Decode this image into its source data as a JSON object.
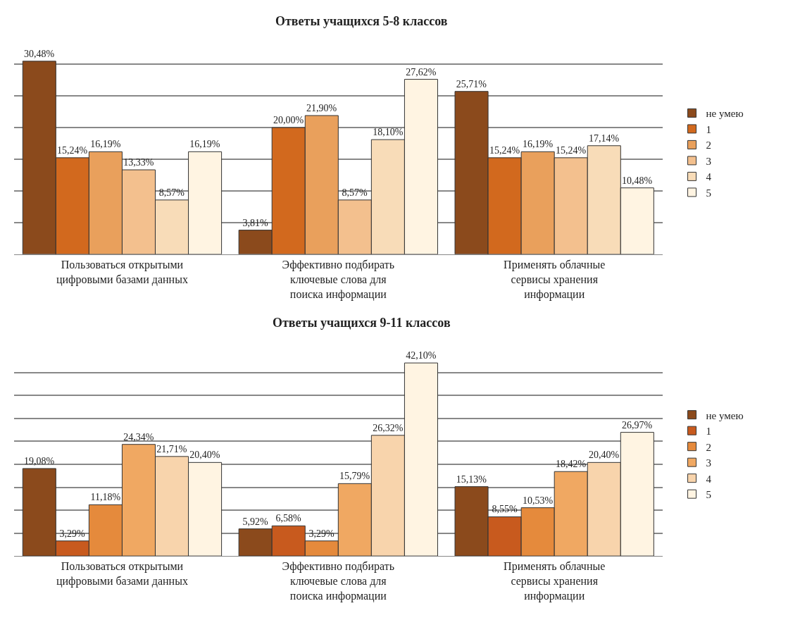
{
  "chart_data": [
    {
      "type": "bar",
      "title": "Ответы учащихся 5-8 классов",
      "categories": [
        "Пользоваться открытыми цифровыми базами данных",
        "Эффективно подбирать ключевые слова для поиска информации",
        "Применять облачные сервисы хранения информации"
      ],
      "series": [
        {
          "name": "не умею",
          "color": "#8b4a1c",
          "values": [
            30.48,
            3.81,
            25.71
          ],
          "value_labels": [
            "30,48%",
            "3,81%",
            "25,71%"
          ]
        },
        {
          "name": "1",
          "color": "#d2691e",
          "values": [
            15.24,
            20.0,
            15.24
          ],
          "value_labels": [
            "15,24%",
            "20,00%",
            "15,24%"
          ]
        },
        {
          "name": "2",
          "color": "#e9a05c",
          "values": [
            16.19,
            21.9,
            16.19
          ],
          "value_labels": [
            "16,19%",
            "21,90%",
            "16,19%"
          ]
        },
        {
          "name": "3",
          "color": "#f3c08e",
          "values": [
            13.33,
            8.57,
            15.24
          ],
          "value_labels": [
            "13,33%",
            "8,57%",
            "15,24%"
          ]
        },
        {
          "name": "4",
          "color": "#f8dcb8",
          "values": [
            8.57,
            18.1,
            17.14
          ],
          "value_labels": [
            "8,57%",
            "18,10%",
            "17,14%"
          ]
        },
        {
          "name": "5",
          "color": "#fff4e2",
          "values": [
            16.19,
            27.62,
            10.48
          ],
          "value_labels": [
            "16,19%",
            "27,62%",
            "10,48%"
          ]
        }
      ],
      "grid": "y",
      "legend": "right",
      "tick_labels": "x"
    },
    {
      "type": "bar",
      "title": "Ответы учащихся 9-11 классов",
      "categories": [
        "Пользоваться открытыми цифровыми базами данных",
        "Эффективно подбирать ключевые слова для поиска информации",
        "Применять облачные сервисы хранения информации"
      ],
      "series": [
        {
          "name": "не умею",
          "color": "#8b4a1c",
          "values": [
            19.08,
            5.92,
            15.13
          ],
          "value_labels": [
            "19,08%",
            "5,92%",
            "15,13%"
          ]
        },
        {
          "name": "1",
          "color": "#c85a1e",
          "values": [
            3.29,
            6.58,
            8.55
          ],
          "value_labels": [
            "3,29%",
            "6,58%",
            "8,55%"
          ]
        },
        {
          "name": "2",
          "color": "#e58a3c",
          "values": [
            11.18,
            3.29,
            10.53
          ],
          "value_labels": [
            "11,18%",
            "3,29%",
            "10,53%"
          ]
        },
        {
          "name": "3",
          "color": "#f0a862",
          "values": [
            24.34,
            15.79,
            18.42
          ],
          "value_labels": [
            "24,34%",
            "15,79%",
            "18,42%"
          ]
        },
        {
          "name": "4",
          "color": "#f8d4ac",
          "values": [
            21.71,
            26.32,
            20.4
          ],
          "value_labels": [
            "21,71%",
            "26,32%",
            "20,40%"
          ]
        },
        {
          "name": "5",
          "color": "#fff4e2",
          "values": [
            20.4,
            42.1,
            26.97
          ],
          "value_labels": [
            "20,40%",
            "42,10%",
            "26,97%"
          ]
        }
      ],
      "grid": "y",
      "legend": "right",
      "tick_labels": "x"
    }
  ]
}
